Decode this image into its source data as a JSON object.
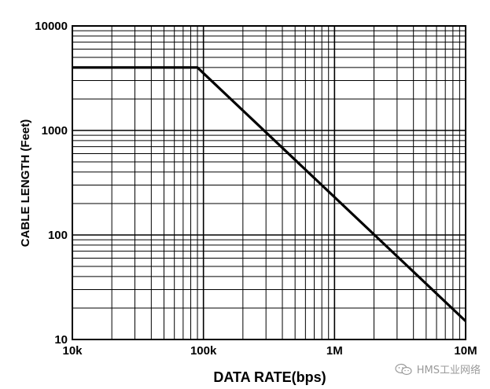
{
  "chart_data": {
    "type": "line",
    "title": "",
    "xlabel": "DATA RATE(bps)",
    "ylabel": "CABLE LENGTH (Feet)",
    "x_scale": "log",
    "y_scale": "log",
    "xlim": [
      10000,
      10000000
    ],
    "ylim": [
      10,
      10000
    ],
    "x_ticks": [
      10000,
      100000,
      1000000,
      10000000
    ],
    "x_tick_labels": [
      "10k",
      "100k",
      "1M",
      "10M"
    ],
    "y_ticks": [
      10,
      100,
      1000,
      10000
    ],
    "y_tick_labels": [
      "10",
      "100",
      "1000",
      "10000"
    ],
    "grid": true,
    "series": [
      {
        "x": [
          10000,
          90000,
          10000000
        ],
        "y": [
          4000,
          4000,
          15
        ]
      }
    ]
  },
  "watermark": {
    "text": "HMS工业网络",
    "icon": "wechat-icon",
    "color": "#9a9a9a"
  }
}
